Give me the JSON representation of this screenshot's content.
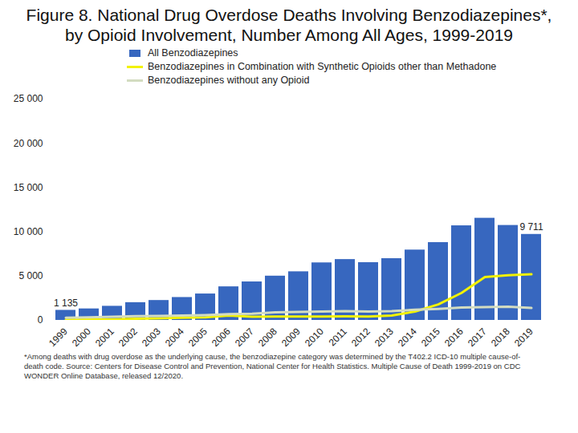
{
  "chart_data": {
    "type": "bar",
    "title": "Figure 8. National Drug Overdose Deaths Involving Benzodiazepines*, by Opioid Involvement, Number Among All Ages, 1999-2019",
    "caption": "*Among deaths with drug overdose as the underlying cause, the benzodiazepine category was determined by the T402.2 ICD-10 multiple cause-of-death code. Source: Centers for Disease Control and Prevention, National Center for Health Statistics. Multiple Cause of Death 1999-2019 on CDC WONDER Online Database, released 12/2020.",
    "categories": [
      "1999",
      "2000",
      "2001",
      "2002",
      "2003",
      "2004",
      "2005",
      "2006",
      "2007",
      "2008",
      "2009",
      "2010",
      "2011",
      "2012",
      "2013",
      "2014",
      "2015",
      "2016",
      "2017",
      "2018",
      "2019"
    ],
    "series": [
      {
        "name": "All Benzodiazepines",
        "type": "bar",
        "color": "#3767bf",
        "values": [
          1135,
          1298,
          1594,
          2004,
          2248,
          2585,
          2983,
          3792,
          4346,
          5000,
          5491,
          6497,
          6872,
          6524,
          6973,
          7945,
          8791,
          10684,
          11537,
          10724,
          9711
        ],
        "value_labels": [
          "1 135",
          null,
          null,
          null,
          null,
          null,
          null,
          null,
          null,
          null,
          null,
          null,
          null,
          null,
          null,
          null,
          null,
          null,
          null,
          null,
          "9 711"
        ]
      },
      {
        "name": "Benzodiazepines in Combination with Synthetic Opioids other than Methadone",
        "type": "line",
        "color": "#f2f200",
        "values": [
          75,
          90,
          120,
          190,
          230,
          290,
          330,
          550,
          400,
          440,
          440,
          420,
          450,
          430,
          550,
          1000,
          1800,
          3100,
          4900,
          5100,
          5200
        ]
      },
      {
        "name": "Benzodiazepines without any Opioid",
        "type": "line",
        "color": "#d3dcc0",
        "values": [
          300,
          330,
          400,
          470,
          500,
          550,
          600,
          700,
          750,
          900,
          950,
          1000,
          1050,
          1000,
          1050,
          1200,
          1300,
          1450,
          1500,
          1550,
          1400
        ]
      }
    ],
    "ylim": [
      0,
      25000
    ],
    "yticks": [
      0,
      {
        "value": 5000,
        "label": "5 000"
      },
      {
        "value": 10000,
        "label": "10 000"
      },
      {
        "value": 15000,
        "label": "15 000"
      },
      {
        "value": 20000,
        "label": "20 000"
      },
      {
        "value": 25000,
        "label": "25 000"
      }
    ],
    "grid": false,
    "data_labels": true,
    "legend": "top-left"
  }
}
